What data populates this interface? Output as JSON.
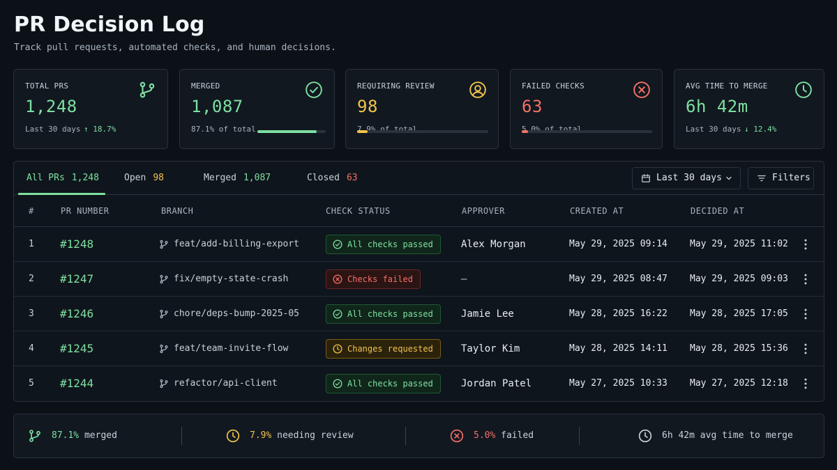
{
  "header": {
    "title": "PR Decision Log",
    "subtitle": "Track pull requests, automated checks, and human decisions."
  },
  "colors": {
    "green": "#7ee0a1",
    "yellow": "#f2c34b",
    "red": "#f47067",
    "muted": "#aab4bf"
  },
  "cards": {
    "total": {
      "label": "TOTAL PRS",
      "value": "1,248",
      "sub": "Last 30 days",
      "trend": "↑ 18.7%",
      "icon": "git-branch-icon"
    },
    "merged": {
      "label": "MERGED",
      "value": "1,087",
      "sub": "87.1% of total",
      "progress": 0.871,
      "icon": "check-circle-icon"
    },
    "review": {
      "label": "REQUIRING REVIEW",
      "value": "98",
      "sub": "7.9% of total",
      "progress": 0.079,
      "icon": "user-circle-icon"
    },
    "failed": {
      "label": "FAILED CHECKS",
      "value": "63",
      "sub": "5.0% of total",
      "progress": 0.05,
      "icon": "x-circle-icon"
    },
    "avg": {
      "label": "AVG TIME TO MERGE",
      "value": "6h 42m",
      "sub": "Last 30 days",
      "trend": "↓ 12.4%",
      "icon": "clock-icon"
    }
  },
  "tabs": [
    {
      "label": "All PRs",
      "count": "1,248"
    },
    {
      "label": "Open",
      "count": "98"
    },
    {
      "label": "Merged",
      "count": "1,087"
    },
    {
      "label": "Closed",
      "count": "63"
    }
  ],
  "controls": {
    "date_range": "Last 30 days",
    "filters": "Filters"
  },
  "table": {
    "columns": [
      "#",
      "PR NUMBER",
      "BRANCH",
      "CHECK STATUS",
      "APPROVER",
      "CREATED AT",
      "DECIDED AT"
    ],
    "rows": [
      {
        "n": "1",
        "pr": "#1248",
        "branch": "feat/add-billing-export",
        "status": "All checks passed",
        "approver": "Alex Morgan",
        "created": "May 29, 2025 09:14",
        "decided": "May 29, 2025 11:02"
      },
      {
        "n": "2",
        "pr": "#1247",
        "branch": "fix/empty-state-crash",
        "status": "Checks failed",
        "approver": "—",
        "created": "May 29, 2025 08:47",
        "decided": "May 29, 2025 09:03"
      },
      {
        "n": "3",
        "pr": "#1246",
        "branch": "chore/deps-bump-2025-05",
        "status": "All checks passed",
        "approver": "Jamie Lee",
        "created": "May 28, 2025 16:22",
        "decided": "May 28, 2025 17:05"
      },
      {
        "n": "4",
        "pr": "#1245",
        "branch": "feat/team-invite-flow",
        "status": "Changes requested",
        "approver": "Taylor Kim",
        "created": "May 28, 2025 14:11",
        "decided": "May 28, 2025 15:36"
      },
      {
        "n": "5",
        "pr": "#1244",
        "branch": "refactor/api-client",
        "status": "All checks passed",
        "approver": "Jordan Patel",
        "created": "May 27, 2025 10:33",
        "decided": "May 27, 2025 12:18"
      }
    ]
  },
  "footer": {
    "merged": {
      "value": "87.1%",
      "text": "merged"
    },
    "review": {
      "value": "7.9%",
      "text": "needing review"
    },
    "failed": {
      "value": "5.0%",
      "text": "failed"
    },
    "avg": {
      "text": "6h 42m avg time to merge"
    }
  }
}
